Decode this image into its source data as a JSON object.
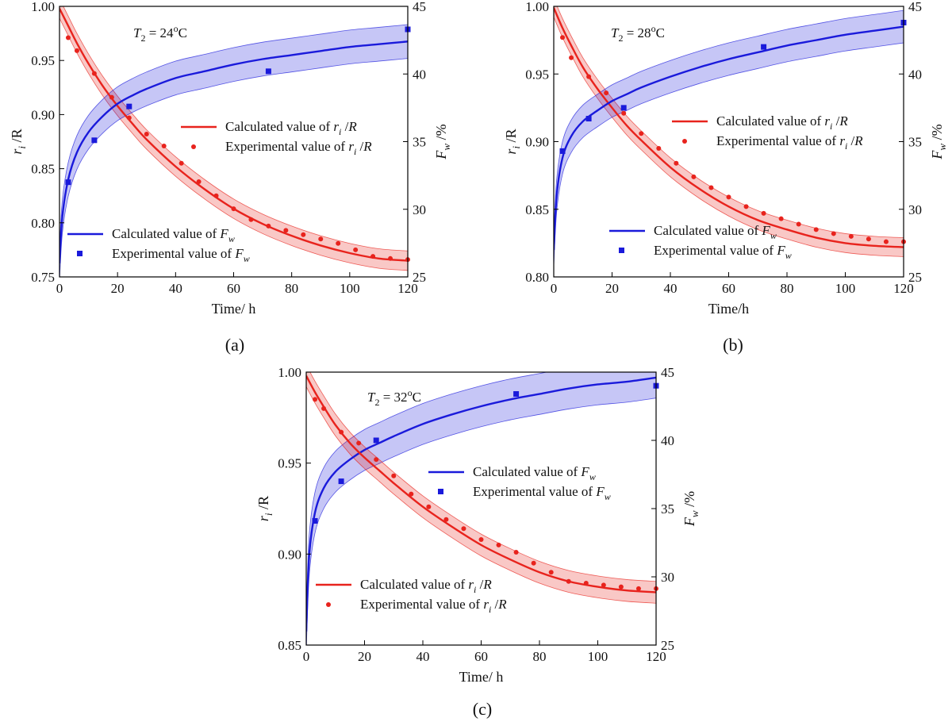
{
  "chart_data": [
    {
      "type": "line",
      "panel_label": "(a)",
      "annotation": {
        "prefix": "T",
        "sub": "2",
        "mid": " = 24",
        "sup": "o",
        "suffix": "C"
      },
      "xlabel": "Time/ h",
      "xlim": [
        0,
        120
      ],
      "xticks": [
        0,
        20,
        40,
        60,
        80,
        100,
        120
      ],
      "ylabel_left": {
        "main": "r",
        "sub": "i",
        "rest": " /R"
      },
      "ylim_left": [
        0.75,
        1.0
      ],
      "yticks_left": [
        "0.75",
        "0.80",
        "0.85",
        "0.90",
        "0.95",
        "1.00"
      ],
      "ylabel_right": {
        "main": "F",
        "sub": "w",
        "rest": " /%"
      },
      "ylim_right": [
        25,
        45
      ],
      "yticks_right": [
        "25",
        "30",
        "35",
        "40",
        "45"
      ],
      "series": [
        {
          "name": "Calculated value of ri/R",
          "legend": {
            "text": "Calculated value of ",
            "it": "r",
            "sub": "i",
            "tail": " /R"
          },
          "axis": "left",
          "kind": "line",
          "color": "#e8231d",
          "band": 0.009,
          "x": [
            0,
            3,
            6,
            10,
            15,
            20,
            25,
            30,
            40,
            50,
            60,
            70,
            80,
            90,
            100,
            110,
            120
          ],
          "y": [
            0.998,
            0.982,
            0.966,
            0.947,
            0.926,
            0.908,
            0.892,
            0.877,
            0.852,
            0.831,
            0.813,
            0.799,
            0.788,
            0.779,
            0.772,
            0.767,
            0.765
          ]
        },
        {
          "name": "Experimental value of ri/R",
          "legend": {
            "text": "Experimental value of ",
            "it": "r",
            "sub": "i",
            "tail": " /R"
          },
          "axis": "left",
          "kind": "scatter",
          "marker": "circle",
          "color": "#e8231d",
          "x": [
            3,
            6,
            12,
            18,
            24,
            30,
            36,
            42,
            48,
            54,
            60,
            66,
            72,
            78,
            84,
            90,
            96,
            102,
            108,
            114,
            120
          ],
          "y": [
            0.971,
            0.959,
            0.938,
            0.916,
            0.897,
            0.882,
            0.871,
            0.855,
            0.838,
            0.825,
            0.813,
            0.803,
            0.797,
            0.793,
            0.789,
            0.785,
            0.781,
            0.775,
            0.769,
            0.767,
            0.766
          ]
        },
        {
          "name": "Calculated value of Fw",
          "legend": {
            "text": "Calculated value of ",
            "it": "F",
            "sub": "w",
            "tail": ""
          },
          "axis": "right",
          "kind": "line",
          "color": "#1a1adb",
          "band": 1.25,
          "x": [
            0,
            1,
            3,
            6,
            10,
            15,
            20,
            25,
            30,
            40,
            50,
            60,
            70,
            80,
            90,
            100,
            110,
            120
          ],
          "y": [
            26.0,
            29.5,
            32.2,
            34.2,
            35.7,
            36.9,
            37.8,
            38.4,
            38.9,
            39.7,
            40.2,
            40.7,
            41.1,
            41.4,
            41.7,
            42.0,
            42.2,
            42.4
          ]
        },
        {
          "name": "Experimental value of Fw",
          "legend": {
            "text": "Experimental value of ",
            "it": "F",
            "sub": "w",
            "tail": ""
          },
          "axis": "right",
          "kind": "scatter",
          "marker": "square",
          "color": "#1a1adb",
          "x": [
            3,
            12,
            24,
            72,
            120
          ],
          "y": [
            32.0,
            35.1,
            37.6,
            40.2,
            43.3
          ]
        }
      ]
    },
    {
      "type": "line",
      "panel_label": "(b)",
      "annotation": {
        "prefix": "T",
        "sub": "2",
        "mid": " = 28",
        "sup": "o",
        "suffix": "C"
      },
      "xlabel": "Time/h",
      "xlim": [
        0,
        120
      ],
      "xticks": [
        0,
        20,
        40,
        60,
        80,
        100,
        120
      ],
      "ylabel_left": {
        "main": "r",
        "sub": "i",
        "rest": " /R"
      },
      "ylim_left": [
        0.8,
        1.0
      ],
      "yticks_left": [
        "0.80",
        "0.85",
        "0.90",
        "0.95",
        "1.00"
      ],
      "ylabel_right": {
        "main": "F",
        "sub": "w",
        "rest": " /%"
      },
      "ylim_right": [
        25,
        45
      ],
      "yticks_right": [
        "25",
        "30",
        "35",
        "40",
        "45"
      ],
      "series": [
        {
          "name": "Calculated value of ri/R",
          "legend": {
            "text": "Calculated value of ",
            "it": "r",
            "sub": "i",
            "tail": " /R"
          },
          "axis": "left",
          "kind": "line",
          "color": "#e8231d",
          "band": 0.007,
          "x": [
            0,
            3,
            6,
            10,
            15,
            20,
            25,
            30,
            40,
            50,
            60,
            70,
            80,
            90,
            100,
            110,
            120
          ],
          "y": [
            0.999,
            0.984,
            0.971,
            0.955,
            0.939,
            0.925,
            0.912,
            0.901,
            0.881,
            0.865,
            0.852,
            0.842,
            0.835,
            0.829,
            0.825,
            0.823,
            0.822
          ]
        },
        {
          "name": "Experimental value of ri/R",
          "legend": {
            "text": "Experimental value of ",
            "it": "r",
            "sub": "i",
            "tail": " /R"
          },
          "axis": "left",
          "kind": "scatter",
          "marker": "circle",
          "color": "#e8231d",
          "x": [
            3,
            6,
            12,
            18,
            24,
            30,
            36,
            42,
            48,
            54,
            60,
            66,
            72,
            78,
            84,
            90,
            96,
            102,
            108,
            114,
            120
          ],
          "y": [
            0.977,
            0.962,
            0.948,
            0.936,
            0.921,
            0.906,
            0.895,
            0.884,
            0.874,
            0.866,
            0.859,
            0.852,
            0.847,
            0.843,
            0.839,
            0.835,
            0.832,
            0.83,
            0.828,
            0.826,
            0.826
          ]
        },
        {
          "name": "Calculated value of Fw",
          "legend": {
            "text": "Calculated value of ",
            "it": "F",
            "sub": "w",
            "tail": ""
          },
          "axis": "right",
          "kind": "line",
          "color": "#1a1adb",
          "band": 1.2,
          "x": [
            0,
            1,
            3,
            6,
            10,
            15,
            20,
            25,
            30,
            40,
            50,
            60,
            70,
            80,
            90,
            100,
            110,
            120
          ],
          "y": [
            27.0,
            31.0,
            33.8,
            35.4,
            36.5,
            37.3,
            38.0,
            38.5,
            39.0,
            39.8,
            40.5,
            41.1,
            41.6,
            42.1,
            42.5,
            42.9,
            43.2,
            43.5
          ]
        },
        {
          "name": "Experimental value of Fw",
          "legend": {
            "text": "Experimental value of ",
            "it": "F",
            "sub": "w",
            "tail": ""
          },
          "axis": "right",
          "kind": "scatter",
          "marker": "square",
          "color": "#1a1adb",
          "x": [
            3,
            12,
            24,
            72,
            120
          ],
          "y": [
            34.3,
            36.7,
            37.5,
            42.0,
            43.8
          ]
        }
      ]
    },
    {
      "type": "line",
      "panel_label": "(c)",
      "annotation": {
        "prefix": "T",
        "sub": "2",
        "mid": " = 32",
        "sup": "o",
        "suffix": "C"
      },
      "xlabel": "Time/ h",
      "xlim": [
        0,
        120
      ],
      "xticks": [
        0,
        20,
        40,
        60,
        80,
        100,
        120
      ],
      "ylabel_left": {
        "main": "r",
        "sub": "i",
        "rest": " /R"
      },
      "ylim_left": [
        0.85,
        1.0
      ],
      "yticks_left": [
        "0.85",
        "0.90",
        "0.95",
        "1.00"
      ],
      "ylabel_right": {
        "main": "F",
        "sub": "w",
        "rest": " /%"
      },
      "ylim_right": [
        25,
        45
      ],
      "yticks_right": [
        "25",
        "30",
        "35",
        "40",
        "45"
      ],
      "series": [
        {
          "name": "Calculated value of Fw",
          "legend": {
            "text": "Calculated value of ",
            "it": "F",
            "sub": "w",
            "tail": ""
          },
          "axis": "right",
          "kind": "line",
          "color": "#1a1adb",
          "band": 1.5,
          "x": [
            0,
            1,
            3,
            6,
            10,
            15,
            20,
            25,
            30,
            40,
            50,
            60,
            70,
            80,
            90,
            100,
            110,
            120
          ],
          "y": [
            26.0,
            31.5,
            34.7,
            36.5,
            37.7,
            38.6,
            39.3,
            39.8,
            40.3,
            41.2,
            41.9,
            42.5,
            43.0,
            43.4,
            43.8,
            44.1,
            44.3,
            44.6
          ]
        },
        {
          "name": "Experimental value of Fw",
          "legend": {
            "text": "Experimental value of ",
            "it": "F",
            "sub": "w",
            "tail": ""
          },
          "axis": "right",
          "kind": "scatter",
          "marker": "square",
          "color": "#1a1adb",
          "x": [
            3,
            12,
            24,
            72,
            120
          ],
          "y": [
            34.1,
            37.0,
            40.0,
            43.4,
            44.0
          ]
        },
        {
          "name": "Calculated value of ri/R",
          "legend": {
            "text": "Calculated value of ",
            "it": "r",
            "sub": "i",
            "tail": " /R"
          },
          "axis": "left",
          "kind": "line",
          "color": "#e8231d",
          "band": 0.006,
          "x": [
            0,
            3,
            6,
            10,
            15,
            20,
            25,
            30,
            40,
            50,
            60,
            70,
            80,
            90,
            100,
            110,
            120
          ],
          "y": [
            0.998,
            0.989,
            0.981,
            0.971,
            0.961,
            0.953,
            0.946,
            0.939,
            0.926,
            0.915,
            0.905,
            0.897,
            0.89,
            0.885,
            0.882,
            0.88,
            0.879
          ]
        },
        {
          "name": "Experimental value of ri/R",
          "legend": {
            "text": "Experimental value of ",
            "it": "r",
            "sub": "i",
            "tail": " /R"
          },
          "axis": "left",
          "kind": "scatter",
          "marker": "circle",
          "color": "#e8231d",
          "x": [
            3,
            6,
            12,
            18,
            24,
            30,
            36,
            42,
            48,
            54,
            60,
            66,
            72,
            78,
            84,
            90,
            96,
            102,
            108,
            114,
            120
          ],
          "y": [
            0.985,
            0.98,
            0.967,
            0.961,
            0.952,
            0.943,
            0.933,
            0.926,
            0.919,
            0.914,
            0.908,
            0.905,
            0.901,
            0.895,
            0.89,
            0.885,
            0.884,
            0.883,
            0.882,
            0.881,
            0.881
          ]
        }
      ]
    }
  ]
}
